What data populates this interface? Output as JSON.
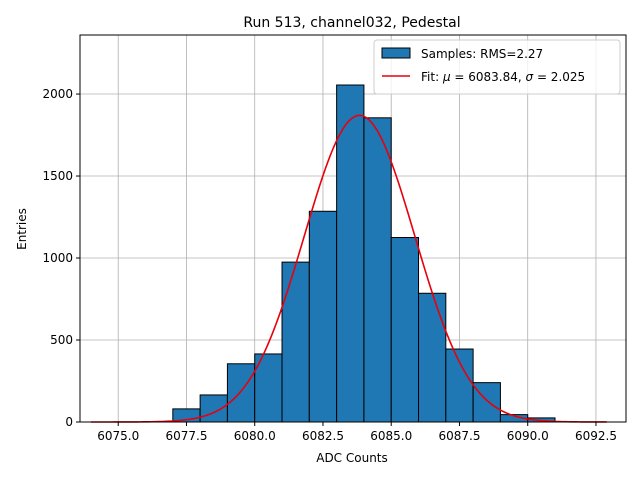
{
  "chart_data": {
    "type": "bar",
    "title": "Run 513, channel032, Pedestal",
    "xlabel": "ADC Counts",
    "ylabel": "Entries",
    "xlim": [
      6073.6,
      6093.6
    ],
    "ylim": [
      0,
      2360
    ],
    "xticks": [
      6075.0,
      6077.5,
      6080.0,
      6082.5,
      6085.0,
      6087.5,
      6090.0,
      6092.5
    ],
    "xtick_labels": [
      "6075.0",
      "6077.5",
      "6080.0",
      "6082.5",
      "6085.0",
      "6087.5",
      "6090.0",
      "6092.5"
    ],
    "yticks": [
      0,
      500,
      1000,
      1500,
      2000
    ],
    "ytick_labels": [
      "0",
      "500",
      "1000",
      "1500",
      "2000"
    ],
    "grid": true,
    "legend_position": "top-right",
    "bins": [
      {
        "x0": 6076.0,
        "x1": 6077.0,
        "value": 2
      },
      {
        "x0": 6077.0,
        "x1": 6078.0,
        "value": 80
      },
      {
        "x0": 6078.0,
        "x1": 6079.0,
        "value": 165
      },
      {
        "x0": 6079.0,
        "x1": 6080.0,
        "value": 355
      },
      {
        "x0": 6080.0,
        "x1": 6081.0,
        "value": 415
      },
      {
        "x0": 6081.0,
        "x1": 6082.0,
        "value": 975
      },
      {
        "x0": 6082.0,
        "x1": 6083.0,
        "value": 1285
      },
      {
        "x0": 6083.0,
        "x1": 6084.0,
        "value": 2055
      },
      {
        "x0": 6084.0,
        "x1": 6085.0,
        "value": 1855
      },
      {
        "x0": 6085.0,
        "x1": 6086.0,
        "value": 1125
      },
      {
        "x0": 6086.0,
        "x1": 6087.0,
        "value": 785
      },
      {
        "x0": 6087.0,
        "x1": 6088.0,
        "value": 445
      },
      {
        "x0": 6088.0,
        "x1": 6089.0,
        "value": 240
      },
      {
        "x0": 6089.0,
        "x1": 6090.0,
        "value": 45
      },
      {
        "x0": 6090.0,
        "x1": 6091.0,
        "value": 25
      }
    ],
    "fit": {
      "type": "gaussian",
      "mu": 6083.84,
      "sigma": 2.025,
      "amplitude": 1870,
      "x_range": [
        6074.0,
        6092.9
      ]
    },
    "legend": [
      {
        "label": "Samples: RMS=2.27",
        "kind": "patch",
        "color": "#1f77b4"
      },
      {
        "label_prefix": "Fit: ",
        "mu_symbol": "μ",
        "mu_text": " = 6083.84, ",
        "sigma_symbol": "σ",
        "sigma_text": " = 2.025",
        "kind": "line",
        "color": "#e8000b"
      }
    ],
    "colors": {
      "bar": "#1f77b4",
      "fit": "#e8000b",
      "grid": "#b0b0b0"
    }
  }
}
